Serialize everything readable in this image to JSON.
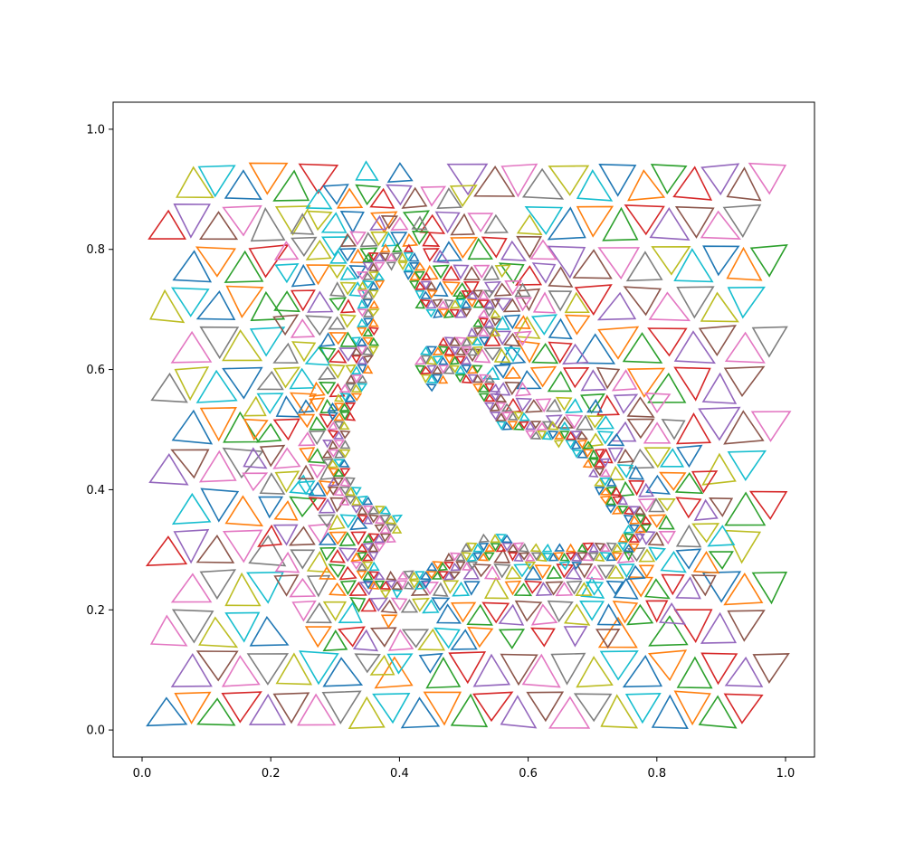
{
  "chart_data": {
    "type": "scatter",
    "title": "",
    "xlabel": "",
    "ylabel": "",
    "xlim": [
      -0.045,
      1.045
    ],
    "ylim": [
      -0.045,
      1.045
    ],
    "x_ticks": [
      "0.0",
      "0.2",
      "0.4",
      "0.6",
      "0.8",
      "1.0"
    ],
    "y_ticks": [
      "0.0",
      "0.2",
      "0.4",
      "0.6",
      "0.8",
      "1.0"
    ],
    "x_tick_values": [
      0.0,
      0.2,
      0.4,
      0.6,
      0.8,
      1.0
    ],
    "y_tick_values": [
      0.0,
      0.2,
      0.4,
      0.6,
      0.8,
      1.0
    ],
    "grid": false,
    "legend": "none",
    "marker": "shrunken triangles of a triangulated unit-square mesh with a hole shaped like a sitting animal",
    "palette": [
      "#1f77b4",
      "#ff7f0e",
      "#2ca02c",
      "#d62728",
      "#9467bd",
      "#8c564b",
      "#e377c2",
      "#7f7f7f",
      "#bcbd22",
      "#17becf"
    ],
    "domain_outer": [
      [
        0,
        0
      ],
      [
        1,
        0
      ],
      [
        1,
        1
      ],
      [
        0,
        1
      ]
    ],
    "hole_outline": [
      [
        0.38,
        0.77
      ],
      [
        0.4,
        0.77
      ],
      [
        0.41,
        0.74
      ],
      [
        0.43,
        0.7
      ],
      [
        0.46,
        0.68
      ],
      [
        0.49,
        0.68
      ],
      [
        0.52,
        0.7
      ],
      [
        0.52,
        0.68
      ],
      [
        0.5,
        0.66
      ],
      [
        0.46,
        0.65
      ],
      [
        0.43,
        0.63
      ],
      [
        0.42,
        0.6
      ],
      [
        0.43,
        0.58
      ],
      [
        0.45,
        0.56
      ],
      [
        0.47,
        0.57
      ],
      [
        0.48,
        0.59
      ],
      [
        0.5,
        0.58
      ],
      [
        0.52,
        0.55
      ],
      [
        0.56,
        0.5
      ],
      [
        0.62,
        0.48
      ],
      [
        0.66,
        0.47
      ],
      [
        0.68,
        0.45
      ],
      [
        0.7,
        0.41
      ],
      [
        0.72,
        0.37
      ],
      [
        0.75,
        0.34
      ],
      [
        0.74,
        0.32
      ],
      [
        0.68,
        0.31
      ],
      [
        0.6,
        0.31
      ],
      [
        0.56,
        0.33
      ],
      [
        0.52,
        0.32
      ],
      [
        0.47,
        0.29
      ],
      [
        0.43,
        0.27
      ],
      [
        0.38,
        0.26
      ],
      [
        0.36,
        0.28
      ],
      [
        0.39,
        0.31
      ],
      [
        0.41,
        0.34
      ],
      [
        0.39,
        0.37
      ],
      [
        0.36,
        0.38
      ],
      [
        0.33,
        0.41
      ],
      [
        0.32,
        0.46
      ],
      [
        0.33,
        0.53
      ],
      [
        0.36,
        0.6
      ],
      [
        0.37,
        0.66
      ],
      [
        0.37,
        0.72
      ]
    ]
  }
}
